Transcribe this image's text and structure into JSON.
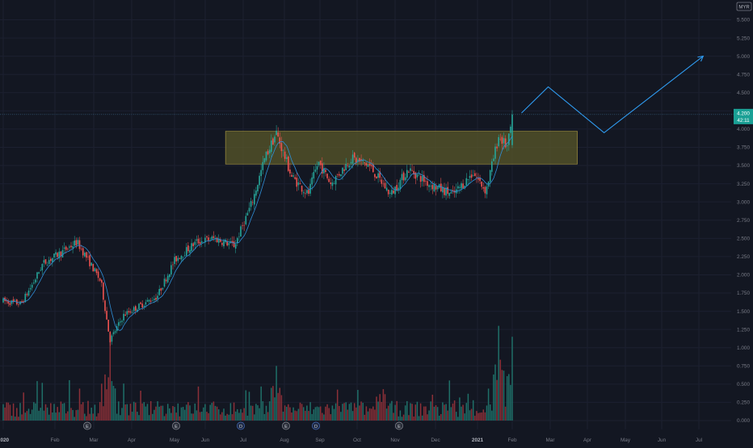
{
  "header": {
    "currency_label": "MYR"
  },
  "price_badge": {
    "price": "4.200",
    "countdown": "42:11"
  },
  "colors": {
    "background": "#131722",
    "axis_text": "#787b86",
    "grid": "#1c2030",
    "up": "#26a69a",
    "down": "#ef5350",
    "volume_up": "#1f6f68",
    "volume_down": "#8c3038",
    "ma_line": "#2f8fd8",
    "projection_line": "#2f9bf0",
    "zone_fill": "#5c5a2a",
    "zone_border": "#c9b248",
    "badge_fill": "#1aa095"
  },
  "chart_data": {
    "type": "candlestick",
    "x_axis_labels": [
      "2020",
      "Feb",
      "Mar",
      "Apr",
      "May",
      "Jun",
      "Jul",
      "Aug",
      "Sep",
      "Oct",
      "Nov",
      "Dec",
      "2021",
      "Feb",
      "Mar",
      "Apr",
      "May",
      "Jun",
      "Jul"
    ],
    "y_axis": {
      "labels": [
        "5.500",
        "5.250",
        "5.000",
        "4.750",
        "4.500",
        "4.250",
        "4.000",
        "3.750",
        "3.500",
        "3.250",
        "3.000",
        "2.750",
        "2.500",
        "2.250",
        "2.000",
        "1.750",
        "1.500",
        "1.250",
        "1.000",
        "0.750",
        "0.500",
        "0.250",
        "0.000"
      ],
      "price_min": 0.0,
      "price_max": 5.5,
      "note": "volume histogram drawn in lower area, unscaled"
    },
    "price_path": [
      [
        "2020-01-01",
        1.64
      ],
      [
        "2020-01-15",
        1.6
      ],
      [
        "2020-01-25",
        1.9
      ],
      [
        "2020-02-01",
        2.15
      ],
      [
        "2020-02-15",
        2.3
      ],
      [
        "2020-02-28",
        2.45
      ],
      [
        "2020-03-08",
        2.2
      ],
      [
        "2020-03-18",
        1.9
      ],
      [
        "2020-03-25",
        1.1
      ],
      [
        "2020-04-05",
        1.45
      ],
      [
        "2020-04-20",
        1.6
      ],
      [
        "2020-05-01",
        1.7
      ],
      [
        "2020-05-15",
        2.2
      ],
      [
        "2020-06-01",
        2.45
      ],
      [
        "2020-06-15",
        2.5
      ],
      [
        "2020-07-01",
        2.4
      ],
      [
        "2020-07-15",
        3.0
      ],
      [
        "2020-07-25",
        3.6
      ],
      [
        "2020-08-03",
        3.95
      ],
      [
        "2020-08-15",
        3.35
      ],
      [
        "2020-08-28",
        3.1
      ],
      [
        "2020-09-05",
        3.55
      ],
      [
        "2020-09-15",
        3.25
      ],
      [
        "2020-10-01",
        3.6
      ],
      [
        "2020-10-15",
        3.5
      ],
      [
        "2020-11-01",
        3.1
      ],
      [
        "2020-11-15",
        3.45
      ],
      [
        "2020-12-01",
        3.25
      ],
      [
        "2020-12-20",
        3.1
      ],
      [
        "2021-01-05",
        3.4
      ],
      [
        "2021-01-15",
        3.15
      ],
      [
        "2021-01-25",
        3.9
      ],
      [
        "2021-02-01",
        3.75
      ],
      [
        "2021-02-05",
        4.2
      ]
    ],
    "volume_spikes": [
      [
        "2020-03-25",
        1.1
      ],
      [
        "2020-08-03",
        0.75
      ],
      [
        "2021-01-25",
        1.3
      ],
      [
        "2021-02-05",
        1.15
      ]
    ],
    "resistance_zone": {
      "price_low": 3.52,
      "price_high": 3.97,
      "start": "2020-06-24",
      "end": "2021-03-28"
    },
    "projection_path": [
      [
        "2021-02-12",
        4.22
      ],
      [
        "2021-03-05",
        4.58
      ],
      [
        "2021-04-18",
        3.95
      ],
      [
        "2021-07-05",
        5.0
      ]
    ],
    "last_price": 4.2
  }
}
